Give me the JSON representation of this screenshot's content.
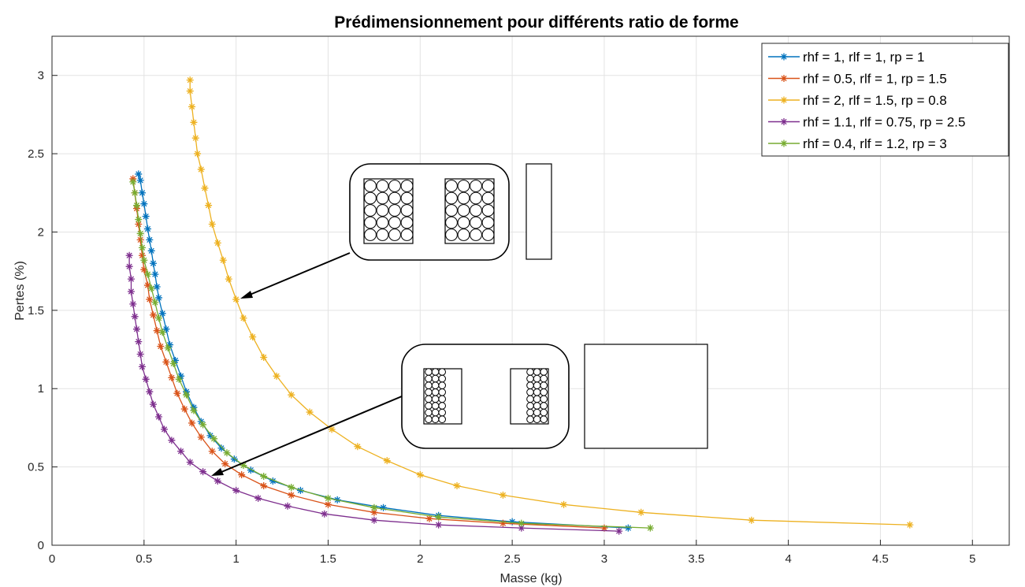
{
  "chart_data": {
    "type": "line",
    "title": "Prédimensionnement pour différents ratio de forme",
    "xlabel": "Masse (kg)",
    "ylabel": "Pertes (%)",
    "xlim": [
      0,
      5.2
    ],
    "ylim": [
      0,
      3.25
    ],
    "xticks": [
      0,
      0.5,
      1,
      1.5,
      2,
      2.5,
      3,
      3.5,
      4,
      4.5,
      5
    ],
    "yticks": [
      0,
      0.5,
      1,
      1.5,
      2,
      2.5,
      3
    ],
    "grid": true,
    "legend_position": "top-right",
    "series": [
      {
        "name": "rhf = 1, rlf = 1, rp = 1",
        "color": "#0072BD",
        "points": [
          [
            0.47,
            2.37
          ],
          [
            0.48,
            2.33
          ],
          [
            0.49,
            2.25
          ],
          [
            0.5,
            2.18
          ],
          [
            0.51,
            2.1
          ],
          [
            0.52,
            2.02
          ],
          [
            0.53,
            1.95
          ],
          [
            0.54,
            1.88
          ],
          [
            0.55,
            1.8
          ],
          [
            0.56,
            1.73
          ],
          [
            0.57,
            1.65
          ],
          [
            0.58,
            1.58
          ],
          [
            0.6,
            1.48
          ],
          [
            0.62,
            1.38
          ],
          [
            0.64,
            1.28
          ],
          [
            0.67,
            1.18
          ],
          [
            0.7,
            1.08
          ],
          [
            0.73,
            0.98
          ],
          [
            0.77,
            0.88
          ],
          [
            0.81,
            0.79
          ],
          [
            0.86,
            0.7
          ],
          [
            0.92,
            0.62
          ],
          [
            0.99,
            0.55
          ],
          [
            1.08,
            0.48
          ],
          [
            1.2,
            0.41
          ],
          [
            1.35,
            0.35
          ],
          [
            1.55,
            0.29
          ],
          [
            1.8,
            0.24
          ],
          [
            2.1,
            0.19
          ],
          [
            2.5,
            0.15
          ],
          [
            3.13,
            0.11
          ]
        ]
      },
      {
        "name": "rhf = 0.5, rlf = 1, rp = 1.5",
        "color": "#D95319",
        "points": [
          [
            0.44,
            2.34
          ],
          [
            0.45,
            2.25
          ],
          [
            0.46,
            2.15
          ],
          [
            0.47,
            2.05
          ],
          [
            0.48,
            1.95
          ],
          [
            0.49,
            1.85
          ],
          [
            0.5,
            1.76
          ],
          [
            0.52,
            1.66
          ],
          [
            0.53,
            1.57
          ],
          [
            0.55,
            1.47
          ],
          [
            0.57,
            1.37
          ],
          [
            0.59,
            1.27
          ],
          [
            0.62,
            1.17
          ],
          [
            0.65,
            1.07
          ],
          [
            0.68,
            0.97
          ],
          [
            0.72,
            0.87
          ],
          [
            0.76,
            0.78
          ],
          [
            0.81,
            0.69
          ],
          [
            0.87,
            0.6
          ],
          [
            0.94,
            0.52
          ],
          [
            1.03,
            0.45
          ],
          [
            1.15,
            0.38
          ],
          [
            1.3,
            0.32
          ],
          [
            1.5,
            0.26
          ],
          [
            1.75,
            0.21
          ],
          [
            2.05,
            0.17
          ],
          [
            2.45,
            0.14
          ],
          [
            3.0,
            0.11
          ]
        ]
      },
      {
        "name": "rhf = 2, rlf = 1.5, rp = 0.8",
        "color": "#EDB120",
        "points": [
          [
            0.75,
            2.97
          ],
          [
            0.75,
            2.9
          ],
          [
            0.76,
            2.8
          ],
          [
            0.77,
            2.7
          ],
          [
            0.78,
            2.6
          ],
          [
            0.79,
            2.5
          ],
          [
            0.81,
            2.4
          ],
          [
            0.83,
            2.28
          ],
          [
            0.85,
            2.17
          ],
          [
            0.87,
            2.05
          ],
          [
            0.9,
            1.93
          ],
          [
            0.93,
            1.82
          ],
          [
            0.96,
            1.7
          ],
          [
            1.0,
            1.57
          ],
          [
            1.04,
            1.45
          ],
          [
            1.09,
            1.33
          ],
          [
            1.15,
            1.2
          ],
          [
            1.22,
            1.08
          ],
          [
            1.3,
            0.96
          ],
          [
            1.4,
            0.85
          ],
          [
            1.52,
            0.74
          ],
          [
            1.66,
            0.63
          ],
          [
            1.82,
            0.54
          ],
          [
            2.0,
            0.45
          ],
          [
            2.2,
            0.38
          ],
          [
            2.45,
            0.32
          ],
          [
            2.78,
            0.26
          ],
          [
            3.2,
            0.21
          ],
          [
            3.8,
            0.16
          ],
          [
            4.66,
            0.13
          ]
        ]
      },
      {
        "name": "rhf = 1.1, rlf = 0.75, rp = 2.5",
        "color": "#7E2F8E",
        "points": [
          [
            0.42,
            1.85
          ],
          [
            0.42,
            1.78
          ],
          [
            0.43,
            1.7
          ],
          [
            0.43,
            1.62
          ],
          [
            0.44,
            1.54
          ],
          [
            0.45,
            1.46
          ],
          [
            0.46,
            1.38
          ],
          [
            0.47,
            1.3
          ],
          [
            0.48,
            1.22
          ],
          [
            0.49,
            1.14
          ],
          [
            0.51,
            1.06
          ],
          [
            0.53,
            0.98
          ],
          [
            0.55,
            0.9
          ],
          [
            0.58,
            0.82
          ],
          [
            0.61,
            0.74
          ],
          [
            0.65,
            0.67
          ],
          [
            0.7,
            0.6
          ],
          [
            0.75,
            0.53
          ],
          [
            0.82,
            0.47
          ],
          [
            0.9,
            0.41
          ],
          [
            1.0,
            0.35
          ],
          [
            1.12,
            0.3
          ],
          [
            1.28,
            0.25
          ],
          [
            1.48,
            0.2
          ],
          [
            1.75,
            0.16
          ],
          [
            2.1,
            0.13
          ],
          [
            2.55,
            0.11
          ],
          [
            3.08,
            0.09
          ]
        ]
      },
      {
        "name": "rhf = 0.4, rlf = 1.2, rp = 3",
        "color": "#77AC30",
        "points": [
          [
            0.44,
            2.32
          ],
          [
            0.45,
            2.25
          ],
          [
            0.46,
            2.17
          ],
          [
            0.47,
            2.08
          ],
          [
            0.48,
            1.99
          ],
          [
            0.49,
            1.9
          ],
          [
            0.5,
            1.82
          ],
          [
            0.52,
            1.73
          ],
          [
            0.54,
            1.64
          ],
          [
            0.56,
            1.55
          ],
          [
            0.58,
            1.45
          ],
          [
            0.6,
            1.36
          ],
          [
            0.63,
            1.26
          ],
          [
            0.66,
            1.16
          ],
          [
            0.69,
            1.06
          ],
          [
            0.73,
            0.96
          ],
          [
            0.77,
            0.86
          ],
          [
            0.82,
            0.77
          ],
          [
            0.88,
            0.68
          ],
          [
            0.95,
            0.59
          ],
          [
            1.04,
            0.51
          ],
          [
            1.15,
            0.44
          ],
          [
            1.3,
            0.37
          ],
          [
            1.5,
            0.3
          ],
          [
            1.75,
            0.24
          ],
          [
            2.1,
            0.18
          ],
          [
            2.55,
            0.14
          ],
          [
            3.25,
            0.11
          ]
        ]
      }
    ]
  }
}
